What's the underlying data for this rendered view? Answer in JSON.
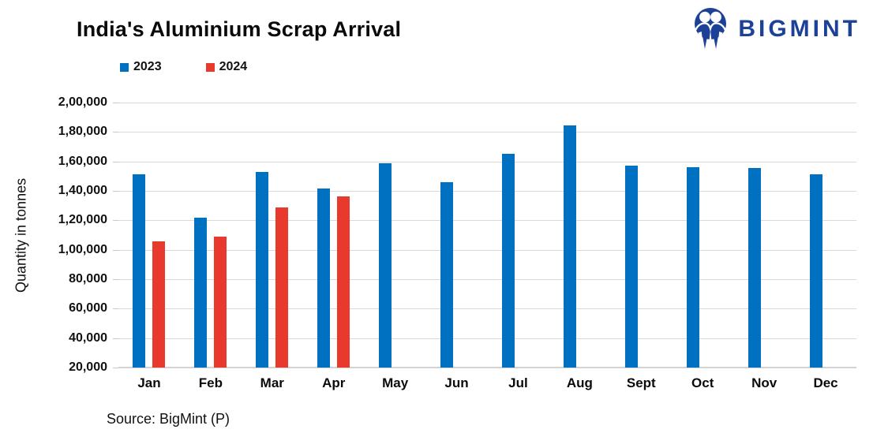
{
  "title": "India's Aluminium Scrap Arrival",
  "logo": {
    "brand": "BIGMINT",
    "color": "#1c4197"
  },
  "legend": {
    "items": [
      {
        "label": "2023",
        "color": "#0070C0"
      },
      {
        "label": "2024",
        "color": "#E8392F"
      }
    ]
  },
  "y_axis": {
    "label": "Quantity in tonnes",
    "tick_labels": [
      "2,00,000",
      "1,80,000",
      "1,60,000",
      "1,40,000",
      "1,20,000",
      "1,00,000",
      "80,000",
      "60,000",
      "40,000",
      "20,000"
    ]
  },
  "x_axis": {
    "tick_labels": [
      "Jan",
      "Feb",
      "Mar",
      "Apr",
      "May",
      "Jun",
      "Jul",
      "Aug",
      "Sept",
      "Oct",
      "Nov",
      "Dec"
    ]
  },
  "source": "Source: BigMint (P)",
  "colors": {
    "grid": "#d9d9d9",
    "bar_2023": "#0070C0",
    "bar_2024": "#E8392F"
  },
  "chart_data": {
    "type": "bar",
    "title": "India's Aluminium Scrap Arrival",
    "categories": [
      "Jan",
      "Feb",
      "Mar",
      "Apr",
      "May",
      "Jun",
      "Jul",
      "Aug",
      "Sept",
      "Oct",
      "Nov",
      "Dec"
    ],
    "series": [
      {
        "name": "2023",
        "color": "#0070C0",
        "values": [
          151000,
          122000,
          153000,
          141500,
          159000,
          146000,
          165000,
          184500,
          157000,
          156000,
          155500,
          151500
        ]
      },
      {
        "name": "2024",
        "color": "#E8392F",
        "values": [
          105500,
          109000,
          129000,
          136000,
          null,
          null,
          null,
          null,
          null,
          null,
          null,
          null
        ]
      }
    ],
    "xlabel": "",
    "ylabel": "Quantity in tonnes",
    "ylim": [
      20000,
      200000
    ],
    "ytick_step": 20000,
    "grid": true,
    "legend_position": "top-left"
  }
}
